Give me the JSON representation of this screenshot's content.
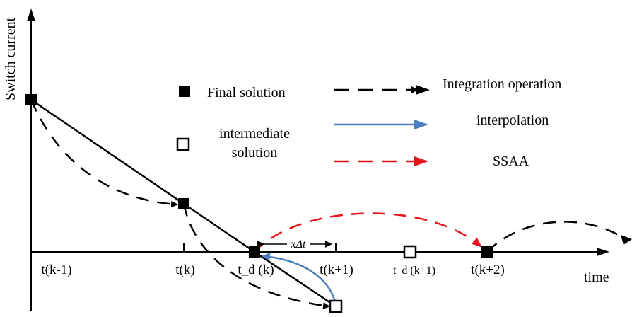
{
  "axes": {
    "y_label": "Switch current",
    "x_label": "time"
  },
  "ticks": {
    "t_k_minus_1": "t(k-1)",
    "t_k": "t(k)",
    "td_k": "t_d (k)",
    "t_k_plus_1": "t(k+1)",
    "td_k_plus_1": "t_d (k+1)",
    "t_k_plus_2": "t(k+2)"
  },
  "step_label": "xΔt",
  "legend": {
    "final_solution": "Final solution",
    "intermediate_line1": "intermediate",
    "intermediate_line2": "solution",
    "integration": "Integration operation",
    "interpolation": "interpolation",
    "ssaa": "SSAA"
  },
  "colors": {
    "black": "#000000",
    "interpolation": "#4a7ebf",
    "ssaa": "#e8141b"
  }
}
